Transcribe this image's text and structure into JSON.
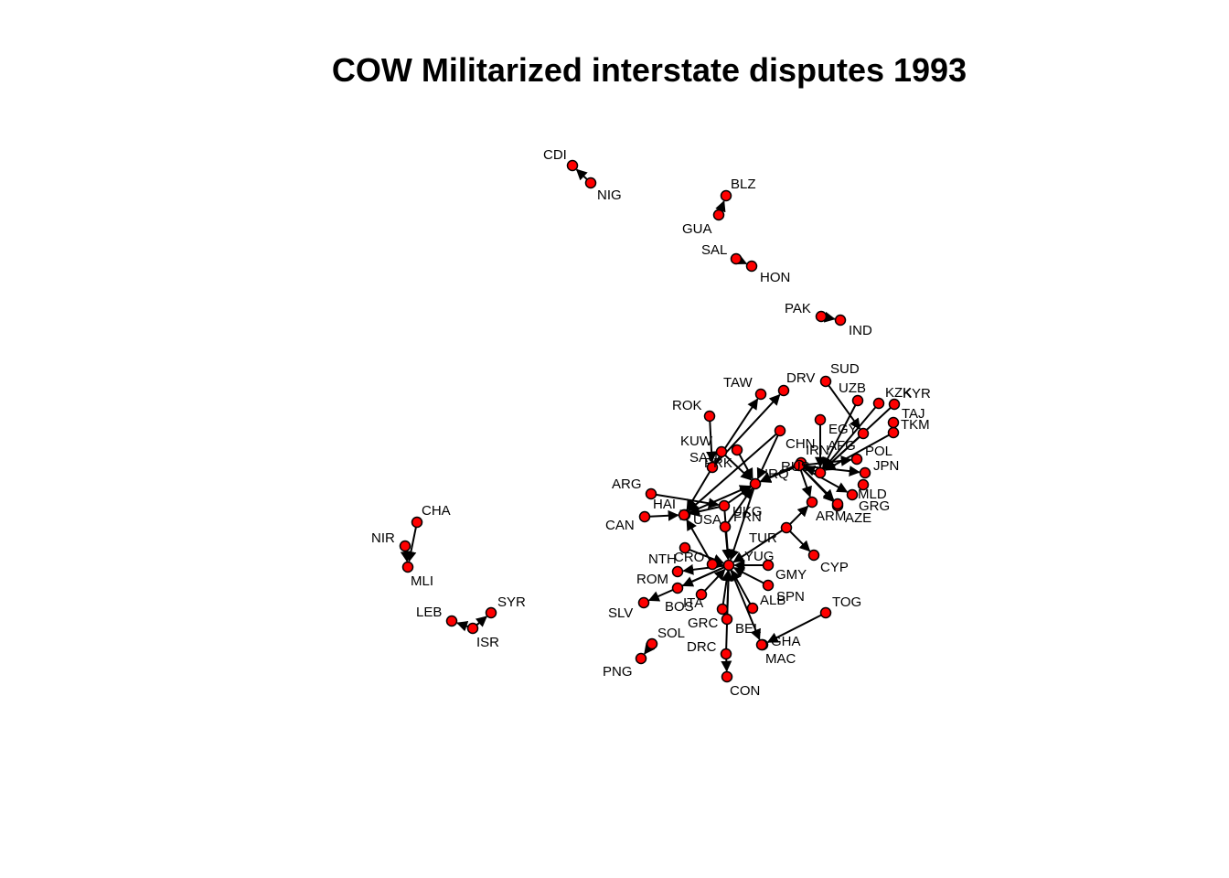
{
  "title": "COW Militarized interstate disputes 1993",
  "node_fill": "#ff0000",
  "node_stroke": "#000000",
  "edge_color": "#000000",
  "nodes": [
    {
      "id": "CDI",
      "label": "CDI"
    },
    {
      "id": "NIG",
      "label": "NIG"
    },
    {
      "id": "BLZ",
      "label": "BLZ"
    },
    {
      "id": "GUA",
      "label": "GUA"
    },
    {
      "id": "SAL",
      "label": "SAL"
    },
    {
      "id": "HON",
      "label": "HON"
    },
    {
      "id": "PAK",
      "label": "PAK"
    },
    {
      "id": "IND",
      "label": "IND"
    },
    {
      "id": "SUD",
      "label": "SUD"
    },
    {
      "id": "TAW",
      "label": "TAW"
    },
    {
      "id": "DRV",
      "label": "DRV"
    },
    {
      "id": "UZB",
      "label": "UZB"
    },
    {
      "id": "KZK",
      "label": "KZK"
    },
    {
      "id": "KYR",
      "label": "KYR"
    },
    {
      "id": "TAJ",
      "label": "TAJ"
    },
    {
      "id": "TKM",
      "label": "TKM"
    },
    {
      "id": "ROK",
      "label": "ROK"
    },
    {
      "id": "EGY",
      "label": "EGY"
    },
    {
      "id": "CHN",
      "label": "CHN"
    },
    {
      "id": "AFG",
      "label": "AFG"
    },
    {
      "id": "KUW",
      "label": "KUW"
    },
    {
      "id": "IRN",
      "label": "IRN"
    },
    {
      "id": "POL",
      "label": "POL"
    },
    {
      "id": "SAU",
      "label": "SAU"
    },
    {
      "id": "PRK",
      "label": "PRK"
    },
    {
      "id": "RUS",
      "label": "RUS"
    },
    {
      "id": "JPN",
      "label": "JPN"
    },
    {
      "id": "IRQ",
      "label": "IRQ"
    },
    {
      "id": "ARG",
      "label": "ARG"
    },
    {
      "id": "MLD",
      "label": "MLD"
    },
    {
      "id": "HAI",
      "label": "HAI"
    },
    {
      "id": "UKG",
      "label": "UKG"
    },
    {
      "id": "GRG",
      "label": "GRG"
    },
    {
      "id": "USA",
      "label": "USA"
    },
    {
      "id": "FRN",
      "label": "FRN"
    },
    {
      "id": "ARM",
      "label": "ARM"
    },
    {
      "id": "AZE",
      "label": "AZE"
    },
    {
      "id": "CAN",
      "label": "CAN"
    },
    {
      "id": "TUR",
      "label": "TUR"
    },
    {
      "id": "NTH",
      "label": "NTH"
    },
    {
      "id": "CRO",
      "label": "CRO"
    },
    {
      "id": "YUG",
      "label": "YUG"
    },
    {
      "id": "CYP",
      "label": "CYP"
    },
    {
      "id": "GMY",
      "label": "GMY"
    },
    {
      "id": "ROM",
      "label": "ROM"
    },
    {
      "id": "ALB",
      "label": "ALB"
    },
    {
      "id": "SPN",
      "label": "SPN"
    },
    {
      "id": "BOS",
      "label": "BOS"
    },
    {
      "id": "ITA",
      "label": "ITA"
    },
    {
      "id": "SLV",
      "label": "SLV"
    },
    {
      "id": "TOG",
      "label": "TOG"
    },
    {
      "id": "GRC",
      "label": "GRC"
    },
    {
      "id": "BEL",
      "label": "BEL"
    },
    {
      "id": "GHA",
      "label": "GHA"
    },
    {
      "id": "SOL",
      "label": "SOL"
    },
    {
      "id": "MAC",
      "label": "MAC"
    },
    {
      "id": "DRC",
      "label": "DRC"
    },
    {
      "id": "PNG",
      "label": "PNG"
    },
    {
      "id": "CON",
      "label": "CON"
    },
    {
      "id": "CHA",
      "label": "CHA"
    },
    {
      "id": "NIR",
      "label": "NIR"
    },
    {
      "id": "MLI",
      "label": "MLI"
    },
    {
      "id": "LEB",
      "label": "LEB"
    },
    {
      "id": "SYR",
      "label": "SYR"
    },
    {
      "id": "ISR",
      "label": "ISR"
    },
    {
      "id": "BEN",
      "label": ""
    },
    {
      "id": "BFO",
      "label": ""
    }
  ],
  "edges": [
    [
      "NIG",
      "CDI"
    ],
    [
      "GUA",
      "BLZ"
    ],
    [
      "SAL",
      "HON"
    ],
    [
      "PAK",
      "IND"
    ],
    [
      "ROK",
      "PRK"
    ],
    [
      "PRK",
      "TAW"
    ],
    [
      "PRK",
      "DRV"
    ],
    [
      "PRK",
      "USA"
    ],
    [
      "UZB",
      "AFG"
    ],
    [
      "SUD",
      "EGY"
    ],
    [
      "KZK",
      "AFG"
    ],
    [
      "KYR",
      "AFG"
    ],
    [
      "TAJ",
      "AFG"
    ],
    [
      "TKM",
      "AFG"
    ],
    [
      "EGY",
      "AFG"
    ],
    [
      "AFG",
      "RUS"
    ],
    [
      "RUS",
      "POL"
    ],
    [
      "RUS",
      "JPN"
    ],
    [
      "RUS",
      "MLD"
    ],
    [
      "RUS",
      "GRG"
    ],
    [
      "RUS",
      "AZE"
    ],
    [
      "RUS",
      "IRQ"
    ],
    [
      "RUS",
      "ARM"
    ],
    [
      "CHN",
      "IRQ"
    ],
    [
      "CHN",
      "USA"
    ],
    [
      "IRN",
      "IRQ"
    ],
    [
      "KUW",
      "IRQ"
    ],
    [
      "SAU",
      "IRQ"
    ],
    [
      "UKG",
      "IRQ"
    ],
    [
      "USA",
      "IRQ"
    ],
    [
      "FRN",
      "IRQ"
    ],
    [
      "IRQ",
      "YUG"
    ],
    [
      "ARG",
      "UKG"
    ],
    [
      "HAI",
      "USA"
    ],
    [
      "CAN",
      "USA"
    ],
    [
      "CRO",
      "USA"
    ],
    [
      "UKG",
      "USA"
    ],
    [
      "FRN",
      "YUG"
    ],
    [
      "UKG",
      "YUG"
    ],
    [
      "TUR",
      "ARM"
    ],
    [
      "TUR",
      "CYP"
    ],
    [
      "TUR",
      "YUG"
    ],
    [
      "NTH",
      "YUG"
    ],
    [
      "CRO",
      "YUG"
    ],
    [
      "GMY",
      "YUG"
    ],
    [
      "YUG",
      "ROM"
    ],
    [
      "ALB",
      "YUG"
    ],
    [
      "SPN",
      "YUG"
    ],
    [
      "YUG",
      "BOS"
    ],
    [
      "ITA",
      "YUG"
    ],
    [
      "YUG",
      "SLV"
    ],
    [
      "GRC",
      "YUG"
    ],
    [
      "BEL",
      "YUG"
    ],
    [
      "YUG",
      "MAC"
    ],
    [
      "DRC",
      "YUG"
    ],
    [
      "DRC",
      "CON"
    ],
    [
      "TOG",
      "GHA"
    ],
    [
      "SOL",
      "PNG"
    ],
    [
      "CHA",
      "MLI"
    ],
    [
      "NIR",
      "MLI"
    ],
    [
      "ISR",
      "SYR"
    ],
    [
      "ISR",
      "LEB"
    ]
  ]
}
